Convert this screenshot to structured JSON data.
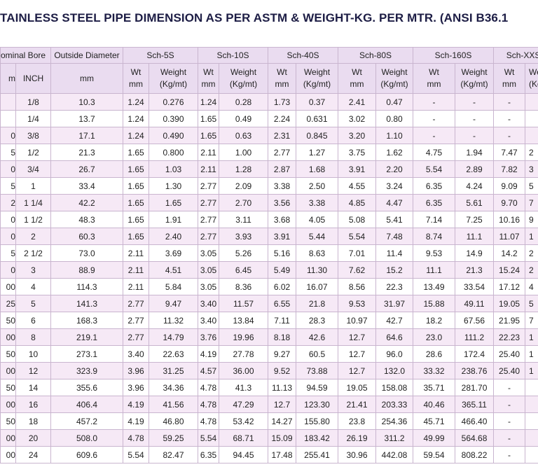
{
  "header": {
    "title": "TAINLESS STEEL PIPE DIMENSION AS PER ASTM & WEIGHT-KG. PER MTR. (ANSI B36.1"
  },
  "table": {
    "group_headers": [
      "ominal Bore",
      "Outside Diameter",
      "Sch-5S",
      "Sch-10S",
      "Sch-40S",
      "Sch-80S",
      "Sch-160S",
      "Sch-XXS"
    ],
    "sub_headers": [
      [
        "m"
      ],
      [
        "INCH"
      ],
      [
        "mm"
      ],
      [
        "Wt",
        "mm"
      ],
      [
        "Weight",
        "(Kg/mt)"
      ],
      [
        "Wt",
        "mm"
      ],
      [
        "Weight",
        "(Kg/mt)"
      ],
      [
        "Wt",
        "mm"
      ],
      [
        "Weight",
        "(Kg/mt)"
      ],
      [
        "Wt",
        "mm"
      ],
      [
        "Weight",
        "(Kg/mt)"
      ],
      [
        "Wt",
        "mm"
      ],
      [
        "Weight",
        "(Kg/mt)"
      ],
      [
        "Wt",
        "mm"
      ],
      [
        "Weight",
        "(Kg/mt)"
      ]
    ],
    "rows": [
      [
        null,
        "1/8",
        "10.3",
        "1.24",
        "0.276",
        "1.24",
        "0.28",
        "1.73",
        "0.37",
        "2.41",
        "0.47",
        "-",
        "-",
        "-",
        null
      ],
      [
        null,
        "1/4",
        "13.7",
        "1.24",
        "0.390",
        "1.65",
        "0.49",
        "2.24",
        "0.631",
        "3.02",
        "0.80",
        "-",
        "-",
        "-",
        null
      ],
      [
        "0",
        "3/8",
        "17.1",
        "1.24",
        "0.490",
        "1.65",
        "0.63",
        "2.31",
        "0.845",
        "3.20",
        "1.10",
        "-",
        "-",
        "-",
        null
      ],
      [
        "5",
        "1/2",
        "21.3",
        "1.65",
        "0.800",
        "2.11",
        "1.00",
        "2.77",
        "1.27",
        "3.75",
        "1.62",
        "4.75",
        "1.94",
        "7.47",
        "2"
      ],
      [
        "0",
        "3/4",
        "26.7",
        "1.65",
        "1.03",
        "2.11",
        "1.28",
        "2.87",
        "1.68",
        "3.91",
        "2.20",
        "5.54",
        "2.89",
        "7.82",
        "3"
      ],
      [
        "5",
        "1",
        "33.4",
        "1.65",
        "1.30",
        "2.77",
        "2.09",
        "3.38",
        "2.50",
        "4.55",
        "3.24",
        "6.35",
        "4.24",
        "9.09",
        "5"
      ],
      [
        "2",
        "1 1/4",
        "42.2",
        "1.65",
        "1.65",
        "2.77",
        "2.70",
        "3.56",
        "3.38",
        "4.85",
        "4.47",
        "6.35",
        "5.61",
        "9.70",
        "7"
      ],
      [
        "0",
        "1 1/2",
        "48.3",
        "1.65",
        "1.91",
        "2.77",
        "3.11",
        "3.68",
        "4.05",
        "5.08",
        "5.41",
        "7.14",
        "7.25",
        "10.16",
        "9"
      ],
      [
        "0",
        "2",
        "60.3",
        "1.65",
        "2.40",
        "2.77",
        "3.93",
        "3.91",
        "5.44",
        "5.54",
        "7.48",
        "8.74",
        "11.1",
        "11.07",
        "1"
      ],
      [
        "5",
        "2 1/2",
        "73.0",
        "2.11",
        "3.69",
        "3.05",
        "5.26",
        "5.16",
        "8.63",
        "7.01",
        "11.4",
        "9.53",
        "14.9",
        "14.2",
        "2"
      ],
      [
        "0",
        "3",
        "88.9",
        "2.11",
        "4.51",
        "3.05",
        "6.45",
        "5.49",
        "11.30",
        "7.62",
        "15.2",
        "11.1",
        "21.3",
        "15.24",
        "2"
      ],
      [
        "00",
        "4",
        "114.3",
        "2.11",
        "5.84",
        "3.05",
        "8.36",
        "6.02",
        "16.07",
        "8.56",
        "22.3",
        "13.49",
        "33.54",
        "17.12",
        "4"
      ],
      [
        "25",
        "5",
        "141.3",
        "2.77",
        "9.47",
        "3.40",
        "11.57",
        "6.55",
        "21.8",
        "9.53",
        "31.97",
        "15.88",
        "49.11",
        "19.05",
        "5"
      ],
      [
        "50",
        "6",
        "168.3",
        "2.77",
        "11.32",
        "3.40",
        "13.84",
        "7.11",
        "28.3",
        "10.97",
        "42.7",
        "18.2",
        "67.56",
        "21.95",
        "7"
      ],
      [
        "00",
        "8",
        "219.1",
        "2.77",
        "14.79",
        "3.76",
        "19.96",
        "8.18",
        "42.6",
        "12.7",
        "64.6",
        "23.0",
        "111.2",
        "22.23",
        "1"
      ],
      [
        "50",
        "10",
        "273.1",
        "3.40",
        "22.63",
        "4.19",
        "27.78",
        "9.27",
        "60.5",
        "12.7",
        "96.0",
        "28.6",
        "172.4",
        "25.40",
        "1"
      ],
      [
        "00",
        "12",
        "323.9",
        "3.96",
        "31.25",
        "4.57",
        "36.00",
        "9.52",
        "73.88",
        "12.7",
        "132.0",
        "33.32",
        "238.76",
        "25.40",
        "1"
      ],
      [
        "50",
        "14",
        "355.6",
        "3.96",
        "34.36",
        "4.78",
        "41.3",
        "11.13",
        "94.59",
        "19.05",
        "158.08",
        "35.71",
        "281.70",
        "-",
        null
      ],
      [
        "00",
        "16",
        "406.4",
        "4.19",
        "41.56",
        "4.78",
        "47.29",
        "12.7",
        "123.30",
        "21.41",
        "203.33",
        "40.46",
        "365.11",
        "-",
        null
      ],
      [
        "50",
        "18",
        "457.2",
        "4.19",
        "46.80",
        "4.78",
        "53.42",
        "14.27",
        "155.80",
        "23.8",
        "254.36",
        "45.71",
        "466.40",
        "-",
        null
      ],
      [
        "00",
        "20",
        "508.0",
        "4.78",
        "59.25",
        "5.54",
        "68.71",
        "15.09",
        "183.42",
        "26.19",
        "311.2",
        "49.99",
        "564.68",
        "-",
        null
      ],
      [
        "00",
        "24",
        "609.6",
        "5.54",
        "82.47",
        "6.35",
        "94.45",
        "17.48",
        "255.41",
        "30.96",
        "442.08",
        "59.54",
        "808.22",
        "-",
        null
      ]
    ]
  }
}
